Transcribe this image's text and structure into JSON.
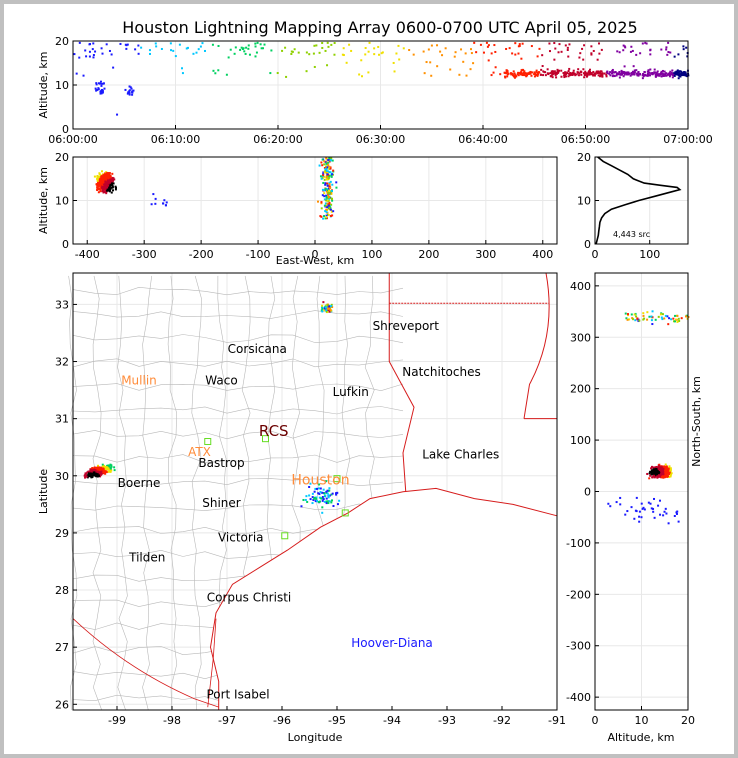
{
  "title": "Houston Lightning Mapping Array 0600-0700 UTC April 05, 2025",
  "colors": {
    "frame": "#c0c0c0",
    "state_border": "#d61c1c",
    "county_border": "#b9b9b9",
    "coast": "#d61c1c",
    "grid": "#e8e8e8",
    "city_label": "#000000",
    "highlight_label": "#ff8c3a",
    "hoover_label": "#1a1aff",
    "station_marker": "#66dd22",
    "rcs_label": "#6b0000"
  },
  "chart_data": [
    {
      "id": "time-height",
      "type": "scatter",
      "xlabel": "",
      "ylabel": "Altitude, km",
      "x_ticks": [
        "06:00:00",
        "06:10:00",
        "06:20:00",
        "06:30:00",
        "06:40:00",
        "06:50:00",
        "07:00:00"
      ],
      "y_ticks": [
        0,
        10,
        20
      ],
      "xlim_minutes": [
        0,
        60
      ],
      "ylim": [
        0,
        20
      ],
      "density_note": "sources colored by time (blue early to red late)",
      "clusters": [
        {
          "t_min": [
            2,
            3
          ],
          "alt": [
            8,
            11
          ],
          "n": 25
        },
        {
          "t_min": [
            5,
            6
          ],
          "alt": [
            8,
            10
          ],
          "n": 15
        },
        {
          "t_min": [
            0,
            60
          ],
          "alt": [
            12,
            20
          ],
          "n": 260
        },
        {
          "t_min": [
            42,
            60
          ],
          "alt": [
            10,
            15
          ],
          "n": 420
        }
      ]
    },
    {
      "id": "ew-height",
      "type": "scatter",
      "xlabel": "East-West, km",
      "ylabel": "Altitude, km",
      "x_ticks": [
        -400,
        -300,
        -200,
        -100,
        0,
        100,
        200,
        300,
        400
      ],
      "y_ticks": [
        0,
        10,
        20
      ],
      "xlim": [
        -425,
        425
      ],
      "ylim": [
        0,
        20
      ]
    },
    {
      "id": "alt-histogram",
      "type": "line",
      "xlabel": "",
      "x_ticks": [
        0,
        100
      ],
      "y_ticks": [
        0,
        10,
        20
      ],
      "xlim": [
        0,
        170
      ],
      "ylim": [
        0,
        20
      ],
      "annotation": "4,443 src",
      "alt_km": [
        0,
        1,
        2,
        3,
        4,
        5,
        6,
        7,
        8,
        9,
        10,
        11,
        12,
        12.5,
        13,
        13.5,
        14,
        15,
        16,
        17,
        18,
        19,
        20
      ],
      "count": [
        2,
        4,
        6,
        7,
        8,
        9,
        12,
        18,
        30,
        55,
        80,
        110,
        140,
        155,
        150,
        120,
        90,
        70,
        60,
        45,
        30,
        15,
        5
      ]
    },
    {
      "id": "plan-view",
      "type": "map",
      "xlabel": "Longitude",
      "ylabel": "Latitude",
      "x_ticks": [
        -99,
        -98,
        -97,
        -96,
        -95,
        -94,
        -93,
        -92,
        -91
      ],
      "y_ticks": [
        26,
        27,
        28,
        29,
        30,
        31,
        32,
        33
      ],
      "xlim": [
        -99.8,
        -91
      ],
      "ylim": [
        25.9,
        33.55
      ]
    },
    {
      "id": "ns-height",
      "type": "scatter",
      "xlabel": "Altitude, km",
      "ylabel": "North-South, km",
      "x_ticks": [
        0,
        10,
        20
      ],
      "y_ticks": [
        -400,
        -300,
        -200,
        -100,
        0,
        100,
        200,
        300,
        400
      ],
      "xlim": [
        0,
        20
      ],
      "ylim": [
        -425,
        425
      ]
    }
  ],
  "map_labels": [
    {
      "text": "Shreveport",
      "lon": -93.75,
      "lat": 32.55,
      "style": "city"
    },
    {
      "text": "Corsicana",
      "lon": -96.45,
      "lat": 32.15,
      "style": "city"
    },
    {
      "text": "Natchitoches",
      "lon": -93.1,
      "lat": 31.75,
      "style": "city"
    },
    {
      "text": "Mullin",
      "lon": -98.6,
      "lat": 31.6,
      "style": "highlight"
    },
    {
      "text": "Waco",
      "lon": -97.1,
      "lat": 31.6,
      "style": "city"
    },
    {
      "text": "Lufkin",
      "lon": -94.75,
      "lat": 31.4,
      "style": "city"
    },
    {
      "text": "RCS",
      "lon": -96.15,
      "lat": 30.7,
      "style": "rcs"
    },
    {
      "text": "ATX",
      "lon": -97.5,
      "lat": 30.35,
      "style": "highlight"
    },
    {
      "text": "Bastrop",
      "lon": -97.1,
      "lat": 30.15,
      "style": "city"
    },
    {
      "text": "Lake Charles",
      "lon": -92.75,
      "lat": 30.3,
      "style": "city"
    },
    {
      "text": "Houston",
      "lon": -95.3,
      "lat": 29.85,
      "style": "highlight"
    },
    {
      "text": "Boerne",
      "lon": -98.6,
      "lat": 29.8,
      "style": "city"
    },
    {
      "text": "Shiner",
      "lon": -97.1,
      "lat": 29.45,
      "style": "city"
    },
    {
      "text": "Victoria",
      "lon": -96.75,
      "lat": 28.85,
      "style": "city"
    },
    {
      "text": "Tilden",
      "lon": -98.45,
      "lat": 28.5,
      "style": "city"
    },
    {
      "text": "Corpus Christi",
      "lon": -96.6,
      "lat": 27.8,
      "style": "city"
    },
    {
      "text": "Hoover-Diana",
      "lon": -94.0,
      "lat": 27.0,
      "style": "hoover"
    },
    {
      "text": "Port Isabel",
      "lon": -96.8,
      "lat": 26.1,
      "style": "city"
    }
  ],
  "stations": [
    {
      "lon": -97.35,
      "lat": 30.6
    },
    {
      "lon": -96.3,
      "lat": 30.65
    },
    {
      "lon": -95.95,
      "lat": 28.95
    },
    {
      "lon": -95.0,
      "lat": 29.95
    },
    {
      "lon": -94.85,
      "lat": 29.35
    }
  ]
}
